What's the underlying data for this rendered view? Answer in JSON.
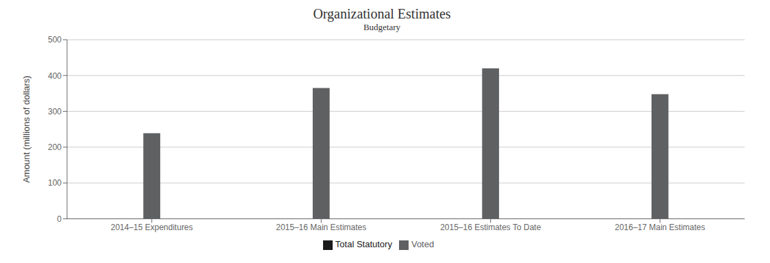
{
  "chart_data": {
    "type": "bar",
    "title": "Organizational Estimates",
    "subtitle": "Budgetary",
    "y_label": "Amount (millions of dollars)",
    "categories": [
      "2014–15 Expenditures",
      "2015–16 Main Estimates",
      "2015–16 Estimates To Date",
      "2016–17 Main Estimates"
    ],
    "series": [
      {
        "name": "Total Statutory",
        "color": "#1a1a1a",
        "values": [
          null,
          null,
          null,
          null
        ]
      },
      {
        "name": "Voted",
        "color": "#5f6062",
        "values": [
          239,
          365,
          420,
          348
        ]
      }
    ],
    "ylim": [
      0,
      500
    ],
    "yticks": [
      0,
      100,
      200,
      300,
      400,
      500
    ],
    "grid": true,
    "legend": "bottom",
    "stacked": true
  }
}
